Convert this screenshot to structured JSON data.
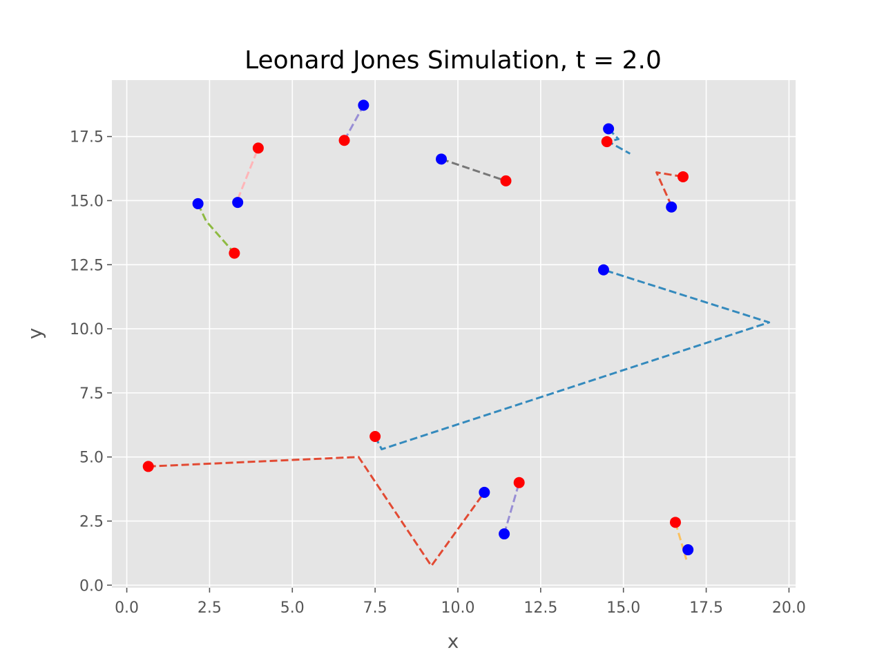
{
  "chart_data": {
    "type": "scatter",
    "title": "Leonard Jones Simulation, t = 2.0",
    "xlabel": "x",
    "ylabel": "y",
    "xlim": [
      -0.45,
      20.2
    ],
    "ylim": [
      -0.1,
      19.7
    ],
    "xticks": [
      "0.0",
      "2.5",
      "5.0",
      "7.5",
      "10.0",
      "12.5",
      "15.0",
      "17.5",
      "20.0"
    ],
    "yticks": [
      "0.0",
      "2.5",
      "5.0",
      "7.5",
      "10.0",
      "12.5",
      "15.0",
      "17.5"
    ],
    "grid": true,
    "background": "#e5e5e5",
    "grid_color": "#ffffff",
    "marker_colors": {
      "red": "#ff0000",
      "blue": "#0000ff"
    },
    "trajectories": [
      {
        "color": "#e24a33",
        "path": [
          [
            0.65,
            4.63
          ],
          [
            7.0,
            5.0
          ],
          [
            9.2,
            0.75
          ],
          [
            10.8,
            3.62
          ]
        ]
      },
      {
        "color": "#348abd",
        "path": [
          [
            7.5,
            5.8
          ],
          [
            7.7,
            5.3
          ],
          [
            19.4,
            10.25
          ],
          [
            14.4,
            12.3
          ]
        ]
      },
      {
        "color": "#8eba42",
        "path": [
          [
            2.15,
            14.88
          ],
          [
            2.4,
            14.2
          ],
          [
            3.25,
            12.95
          ]
        ]
      },
      {
        "color": "#ffb5b8",
        "path": [
          [
            3.35,
            15.05
          ],
          [
            3.97,
            17.05
          ]
        ]
      },
      {
        "color": "#988ed5",
        "path": [
          [
            6.57,
            17.35
          ],
          [
            7.15,
            18.72
          ]
        ]
      },
      {
        "color": "#777777",
        "path": [
          [
            9.5,
            16.62
          ],
          [
            11.45,
            15.77
          ]
        ]
      },
      {
        "color": "#348abd",
        "path": [
          [
            14.55,
            17.8
          ],
          [
            14.85,
            17.4
          ],
          [
            14.55,
            17.3
          ],
          [
            15.2,
            16.83
          ]
        ]
      },
      {
        "color": "#e24a33",
        "path": [
          [
            16.45,
            14.8
          ],
          [
            16.0,
            16.1
          ],
          [
            16.8,
            15.93
          ]
        ]
      },
      {
        "color": "#988ed5",
        "path": [
          [
            11.4,
            2.0
          ],
          [
            11.85,
            4.0
          ]
        ]
      },
      {
        "color": "#fbc15e",
        "path": [
          [
            16.57,
            2.45
          ],
          [
            16.9,
            1.0
          ]
        ]
      }
    ],
    "red_points": [
      [
        0.65,
        4.63
      ],
      [
        3.25,
        12.95
      ],
      [
        3.97,
        17.05
      ],
      [
        6.57,
        17.35
      ],
      [
        7.5,
        5.8
      ],
      [
        11.45,
        15.77
      ],
      [
        14.5,
        17.3
      ],
      [
        16.8,
        15.93
      ],
      [
        11.85,
        4.0
      ],
      [
        16.57,
        2.45
      ]
    ],
    "blue_points": [
      [
        2.15,
        14.88
      ],
      [
        3.35,
        14.93
      ],
      [
        7.15,
        18.72
      ],
      [
        9.5,
        16.62
      ],
      [
        14.55,
        17.8
      ],
      [
        16.45,
        14.75
      ],
      [
        14.4,
        12.3
      ],
      [
        10.8,
        3.62
      ],
      [
        11.4,
        2.0
      ],
      [
        16.95,
        1.38
      ]
    ]
  }
}
